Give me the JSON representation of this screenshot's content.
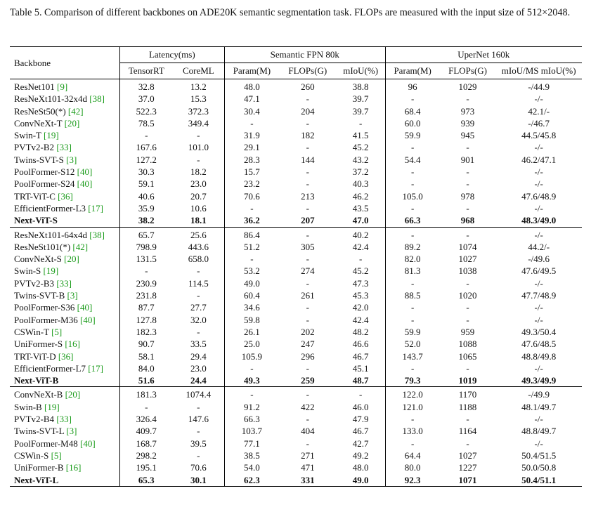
{
  "caption": "Table 5.  Comparison of different backbones on ADE20K semantic segmentation task.  FLOPs are measured with the input size of 512×2048.",
  "header": {
    "backbone": "Backbone",
    "latency": "Latency(ms)",
    "fpn": "Semantic FPN 80k",
    "upernet": "UperNet 160k",
    "cols": [
      "TensorRT",
      "CoreML",
      "Param(M)",
      "FLOPs(G)",
      "mIoU(%)",
      "Param(M)",
      "FLOPs(G)",
      "mIoU/MS mIoU(%)"
    ]
  },
  "groups": [
    [
      {
        "name": "ResNet101 ",
        "ref": "[9]",
        "v": [
          "32.8",
          "13.2",
          "48.0",
          "260",
          "38.8",
          "96",
          "1029",
          "-/44.9"
        ]
      },
      {
        "name": "ResNeXt101-32x4d ",
        "ref": "[38]",
        "v": [
          "37.0",
          "15.3",
          "47.1",
          "-",
          "39.7",
          "-",
          "-",
          "-/-"
        ]
      },
      {
        "name": "ResNeSt50(*) ",
        "ref": "[42]",
        "v": [
          "522.3",
          "372.3",
          "30.4",
          "204",
          "39.7",
          "68.4",
          "973",
          "42.1/-"
        ]
      },
      {
        "name": "ConvNeXt-T ",
        "ref": "[20]",
        "v": [
          "78.5",
          "349.4",
          "-",
          "-",
          "-",
          "60.0",
          "939",
          "-/46.7"
        ]
      },
      {
        "name": "Swin-T ",
        "ref": "[19]",
        "v": [
          "-",
          "-",
          "31.9",
          "182",
          "41.5",
          "59.9",
          "945",
          "44.5/45.8"
        ]
      },
      {
        "name": "PVTv2-B2 ",
        "ref": "[33]",
        "v": [
          "167.6",
          "101.0",
          "29.1",
          "-",
          "45.2",
          "-",
          "-",
          "-/-"
        ]
      },
      {
        "name": "Twins-SVT-S ",
        "ref": "[3]",
        "v": [
          "127.2",
          "-",
          "28.3",
          "144",
          "43.2",
          "54.4",
          "901",
          "46.2/47.1"
        ]
      },
      {
        "name": "PoolFormer-S12 ",
        "ref": "[40]",
        "v": [
          "30.3",
          "18.2",
          "15.7",
          "-",
          "37.2",
          "-",
          "-",
          "-/-"
        ]
      },
      {
        "name": "PoolFormer-S24 ",
        "ref": "[40]",
        "v": [
          "59.1",
          "23.0",
          "23.2",
          "-",
          "40.3",
          "-",
          "-",
          "-/-"
        ]
      },
      {
        "name": "TRT-ViT-C ",
        "ref": "[36]",
        "v": [
          "40.6",
          "20.7",
          "70.6",
          "213",
          "46.2",
          "105.0",
          "978",
          "47.6/48.9"
        ]
      },
      {
        "name": "EfficientFormer-L3 ",
        "ref": "[17]",
        "v": [
          "35.9",
          "10.6",
          "-",
          "-",
          "43.5",
          "-",
          "-",
          "-/-"
        ]
      },
      {
        "name": "Next-ViT-S",
        "ref": "",
        "bold": true,
        "v": [
          "38.2",
          "18.1",
          "36.2",
          "207",
          "47.0",
          "66.3",
          "968",
          "48.3/49.0"
        ]
      }
    ],
    [
      {
        "name": "ResNeXt101-64x4d ",
        "ref": "[38]",
        "v": [
          "65.7",
          "25.6",
          "86.4",
          "-",
          "40.2",
          "-",
          "-",
          "-/-"
        ]
      },
      {
        "name": "ResNeSt101(*) ",
        "ref": "[42]",
        "v": [
          "798.9",
          "443.6",
          "51.2",
          "305",
          "42.4",
          "89.2",
          "1074",
          "44.2/-"
        ]
      },
      {
        "name": "ConvNeXt-S ",
        "ref": "[20]",
        "v": [
          "131.5",
          "658.0",
          "-",
          "-",
          "-",
          "82.0",
          "1027",
          "-/49.6"
        ]
      },
      {
        "name": "Swin-S ",
        "ref": "[19]",
        "v": [
          "-",
          "-",
          "53.2",
          "274",
          "45.2",
          "81.3",
          "1038",
          "47.6/49.5"
        ]
      },
      {
        "name": "PVTv2-B3 ",
        "ref": "[33]",
        "v": [
          "230.9",
          "114.5",
          "49.0",
          "-",
          "47.3",
          "-",
          "-",
          "-/-"
        ]
      },
      {
        "name": "Twins-SVT-B ",
        "ref": "[3]",
        "v": [
          "231.8",
          "-",
          "60.4",
          "261",
          "45.3",
          "88.5",
          "1020",
          "47.7/48.9"
        ]
      },
      {
        "name": "PoolFormer-S36 ",
        "ref": "[40]",
        "v": [
          "87.7",
          "27.7",
          "34.6",
          "-",
          "42.0",
          "-",
          "-",
          "-/-"
        ]
      },
      {
        "name": "PoolFormer-M36 ",
        "ref": "[40]",
        "v": [
          "127.8",
          "32.0",
          "59.8",
          "-",
          "42.4",
          "-",
          "-",
          "-/-"
        ]
      },
      {
        "name": "CSWin-T ",
        "ref": "[5]",
        "v": [
          "182.3",
          "-",
          "26.1",
          "202",
          "48.2",
          "59.9",
          "959",
          "49.3/50.4"
        ]
      },
      {
        "name": "UniFormer-S ",
        "ref": "[16]",
        "v": [
          "90.7",
          "33.5",
          "25.0",
          "247",
          "46.6",
          "52.0",
          "1088",
          "47.6/48.5"
        ]
      },
      {
        "name": "TRT-ViT-D ",
        "ref": "[36]",
        "v": [
          "58.1",
          "29.4",
          "105.9",
          "296",
          "46.7",
          "143.7",
          "1065",
          "48.8/49.8"
        ]
      },
      {
        "name": "EfficientFormer-L7 ",
        "ref": "[17]",
        "v": [
          "84.0",
          "23.0",
          "-",
          "-",
          "45.1",
          "-",
          "-",
          "-/-"
        ]
      },
      {
        "name": "Next-ViT-B",
        "ref": "",
        "bold": true,
        "v": [
          "51.6",
          "24.4",
          "49.3",
          "259",
          "48.7",
          "79.3",
          "1019",
          "49.3/49.9"
        ]
      }
    ],
    [
      {
        "name": "ConvNeXt-B ",
        "ref": "[20]",
        "v": [
          "181.3",
          "1074.4",
          "-",
          "-",
          "-",
          "122.0",
          "1170",
          "-/49.9"
        ]
      },
      {
        "name": "Swin-B ",
        "ref": "[19]",
        "v": [
          "-",
          "-",
          "91.2",
          "422",
          "46.0",
          "121.0",
          "1188",
          "48.1/49.7"
        ]
      },
      {
        "name": "PVTv2-B4 ",
        "ref": "[33]",
        "v": [
          "326.4",
          "147.6",
          "66.3",
          "-",
          "47.9",
          "-",
          "-",
          "-/-"
        ]
      },
      {
        "name": "Twins-SVT-L ",
        "ref": "[3]",
        "v": [
          "409.7",
          "-",
          "103.7",
          "404",
          "46.7",
          "133.0",
          "1164",
          "48.8/49.7"
        ]
      },
      {
        "name": "PoolFormer-M48 ",
        "ref": "[40]",
        "v": [
          "168.7",
          "39.5",
          "77.1",
          "-",
          "42.7",
          "-",
          "-",
          "-/-"
        ]
      },
      {
        "name": "CSWin-S ",
        "ref": "[5]",
        "v": [
          "298.2",
          "-",
          "38.5",
          "271",
          "49.2",
          "64.4",
          "1027",
          "50.4/51.5"
        ]
      },
      {
        "name": "UniFormer-B ",
        "ref": "[16]",
        "v": [
          "195.1",
          "70.6",
          "54.0",
          "471",
          "48.0",
          "80.0",
          "1227",
          "50.0/50.8"
        ]
      },
      {
        "name": "Next-ViT-L",
        "ref": "",
        "bold": true,
        "v": [
          "65.3",
          "30.1",
          "62.3",
          "331",
          "49.0",
          "92.3",
          "1071",
          "50.4/51.1"
        ]
      }
    ]
  ]
}
